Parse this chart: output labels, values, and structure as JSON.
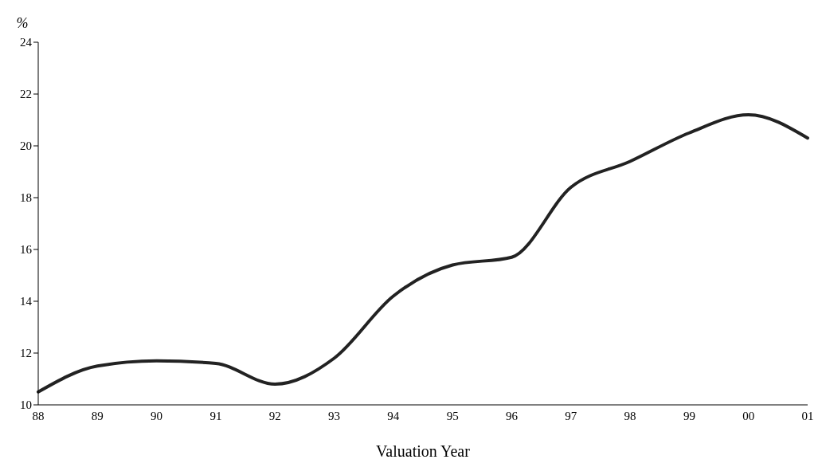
{
  "chart_data": {
    "type": "line",
    "ylabel": "%",
    "xlabel": "Valuation Year",
    "categories": [
      "88",
      "89",
      "90",
      "91",
      "92",
      "93",
      "94",
      "95",
      "96",
      "97",
      "98",
      "99",
      "00",
      "01"
    ],
    "series": [
      {
        "color": "#222222",
        "values": [
          10.5,
          11.5,
          11.7,
          11.6,
          10.8,
          11.8,
          14.2,
          15.4,
          15.7,
          18.4,
          19.4,
          20.5,
          21.2,
          20.3
        ]
      }
    ],
    "ylim": [
      10,
      24
    ],
    "yticks": [
      10,
      12,
      14,
      16,
      18,
      20,
      22,
      24
    ],
    "grid": false,
    "legend": false,
    "marker": "none",
    "line_style": "solid"
  }
}
